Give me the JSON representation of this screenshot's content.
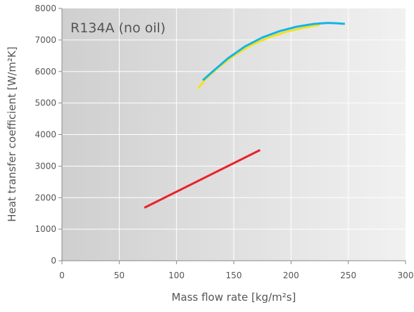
{
  "chart_data": {
    "type": "line",
    "title": "R134A (no oil)",
    "xlabel": "Mass flow rate [kg/m²s]",
    "ylabel": "Heat transfer coefficient [W/m²K]",
    "xlim": [
      0,
      300
    ],
    "ylim": [
      0,
      8000
    ],
    "x_ticks": [
      "0",
      "50",
      "100",
      "150",
      "200",
      "250",
      "300"
    ],
    "y_ticks": [
      "0",
      "1000",
      "2000",
      "3000",
      "4000",
      "5000",
      "6000",
      "7000",
      "8000"
    ],
    "grid": true,
    "legend": "none",
    "series": [
      {
        "color": "#e8232a",
        "points": [
          [
            72,
            1680
          ],
          [
            173,
            3510
          ]
        ]
      },
      {
        "color": "#f5e11e",
        "points": [
          [
            119,
            5470
          ],
          [
            125,
            5740
          ],
          [
            135,
            6080
          ],
          [
            150,
            6500
          ],
          [
            165,
            6830
          ],
          [
            180,
            7070
          ],
          [
            195,
            7250
          ],
          [
            210,
            7380
          ],
          [
            225,
            7480
          ]
        ]
      },
      {
        "color": "#14b4e6",
        "points": [
          [
            123,
            5720
          ],
          [
            130,
            5950
          ],
          [
            145,
            6420
          ],
          [
            160,
            6800
          ],
          [
            175,
            7080
          ],
          [
            190,
            7280
          ],
          [
            205,
            7420
          ],
          [
            220,
            7510
          ],
          [
            232,
            7540
          ],
          [
            240,
            7530
          ],
          [
            247,
            7510
          ]
        ]
      }
    ]
  },
  "colors": {
    "axis": "#888888",
    "grid": "#ffffff",
    "text": "#555555",
    "panel_left": "#cfcfcf",
    "panel_right": "#f1f1f1"
  }
}
